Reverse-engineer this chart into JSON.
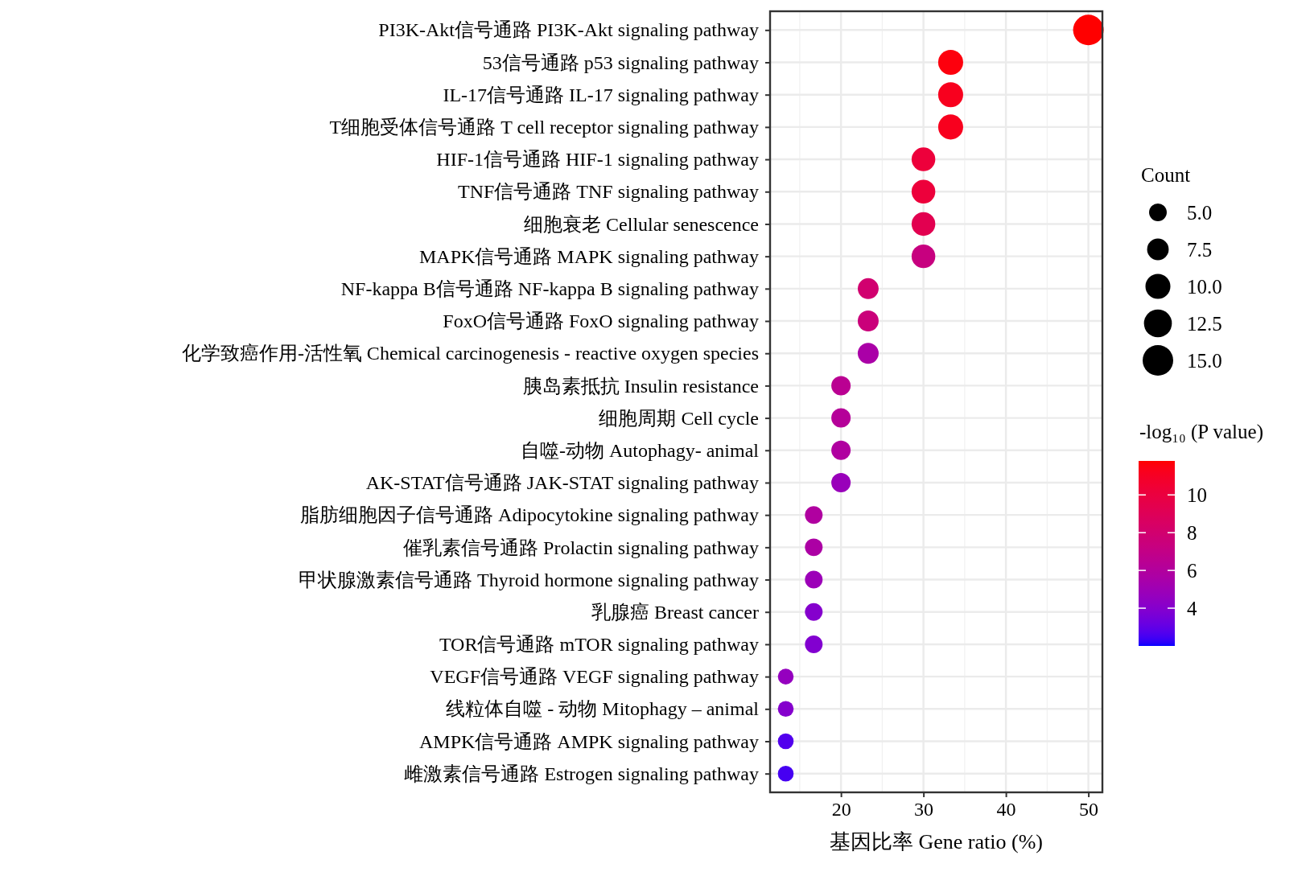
{
  "chart_data": {
    "type": "bubble",
    "orientation": "horizontal",
    "xlabel": "基因比率 Gene ratio (%)",
    "legend_title": "Count",
    "clabel": "-log₁₀ (P value)",
    "categories": [
      "PI3K-Akt信号通路 PI3K-Akt signaling pathway",
      "53信号通路 p53 signaling pathway",
      "IL-17信号通路 IL-17 signaling pathway",
      "T细胞受体信号通路 T cell receptor signaling pathway",
      "HIF-1信号通路 HIF-1 signaling pathway",
      "TNF信号通路 TNF signaling pathway",
      "细胞衰老 Cellular senescence",
      "MAPK信号通路 MAPK signaling pathway",
      "NF-kappa B信号通路 NF-kappa B signaling pathway",
      "FoxO信号通路 FoxO signaling pathway",
      "化学致癌作用-活性氧 Chemical carcinogenesis - reactive oxygen species",
      "胰岛素抵抗 Insulin resistance",
      "细胞周期 Cell cycle",
      "自噬-动物 Autophagy- animal",
      "AK-STAT信号通路 JAK-STAT signaling pathway",
      "脂肪细胞因子信号通路 Adipocytokine signaling pathway",
      "催乳素信号通路 Prolactin signaling pathway",
      "甲状腺激素信号通路 Thyroid hormone signaling pathway",
      "乳腺癌 Breast cancer",
      "TOR信号通路 mTOR signaling pathway",
      "VEGF信号通路 VEGF signaling pathway",
      "线粒体自噬 - 动物 Mitophagy – animal",
      "AMPK信号通路 AMPK signaling pathway",
      "雌激素信号通路 Estrogen signaling pathway"
    ],
    "values": [
      50,
      33.3,
      33.3,
      33.3,
      30,
      30,
      30,
      30,
      23.3,
      23.3,
      23.3,
      20,
      20,
      20,
      20,
      16.7,
      16.7,
      16.7,
      16.7,
      16.7,
      13.3,
      13.3,
      13.3,
      13.3
    ],
    "sizes": [
      15,
      10,
      10,
      10,
      9,
      9,
      9,
      9,
      7,
      7,
      7,
      6,
      6,
      6,
      6,
      5,
      5,
      5,
      5,
      5,
      4,
      4,
      4,
      4
    ],
    "cvalues": [
      11.8,
      11.6,
      11.2,
      11.2,
      10.2,
      10.2,
      9.3,
      7.3,
      8.0,
      7.5,
      5.6,
      6.5,
      6.2,
      5.9,
      4.8,
      5.9,
      5.7,
      4.9,
      4.0,
      3.9,
      4.6,
      4.0,
      2.7,
      2.5
    ],
    "size_legend": [
      {
        "value": 5,
        "label": "5.0"
      },
      {
        "value": 7.5,
        "label": "7.5"
      },
      {
        "value": 10,
        "label": "10.0"
      },
      {
        "value": 12.5,
        "label": "12.5"
      },
      {
        "value": 15,
        "label": "15.0"
      }
    ],
    "clim": [
      2.0,
      11.8
    ],
    "cticks": [
      4,
      6,
      8,
      10
    ],
    "xlim": [
      11.4,
      51.7
    ],
    "xticks": [
      20,
      30,
      40,
      50
    ],
    "grid": true
  }
}
